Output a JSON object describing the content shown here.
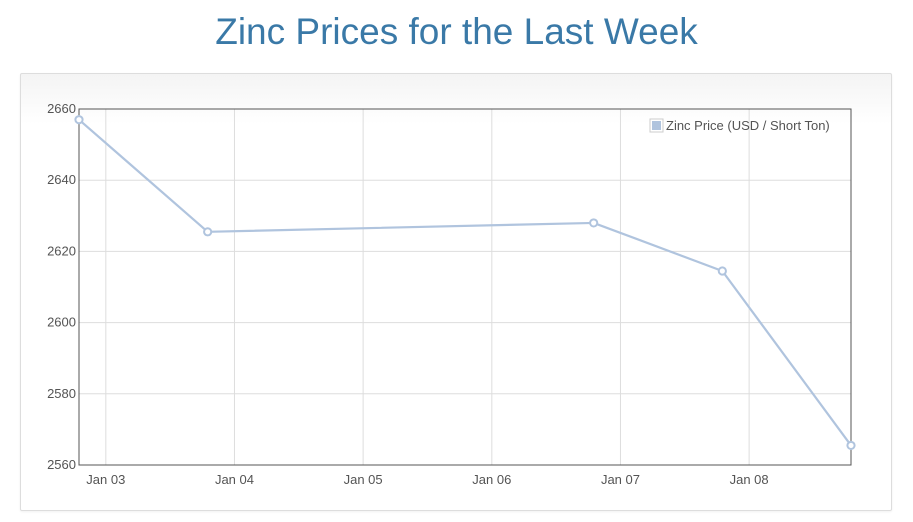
{
  "page": {
    "title": "Zinc Prices for the Last Week"
  },
  "chart_data": {
    "type": "line",
    "title": "Zinc Prices for the Last Week",
    "xlabel": "",
    "ylabel": "",
    "x_ticks": [
      "Jan 03",
      "Jan 04",
      "Jan 05",
      "Jan 06",
      "Jan 07",
      "Jan 08"
    ],
    "y_ticks": [
      2560,
      2580,
      2600,
      2620,
      2640,
      2660
    ],
    "ylim": [
      2560,
      2660
    ],
    "xlim": [
      "2023-01-02 19:00",
      "2023-01-08 19:00"
    ],
    "grid": true,
    "legend_position": "top-right",
    "series": [
      {
        "name": "Zinc Price (USD / Short Ton)",
        "color": "#b0c4de",
        "points": [
          {
            "x": "2023-01-02 19:00",
            "y": 2657
          },
          {
            "x": "2023-01-03 19:00",
            "y": 2625.5
          },
          {
            "x": "2023-01-06 19:00",
            "y": 2628
          },
          {
            "x": "2023-01-07 19:00",
            "y": 2614.5
          },
          {
            "x": "2023-01-08 19:00",
            "y": 2565.5
          }
        ]
      }
    ]
  }
}
